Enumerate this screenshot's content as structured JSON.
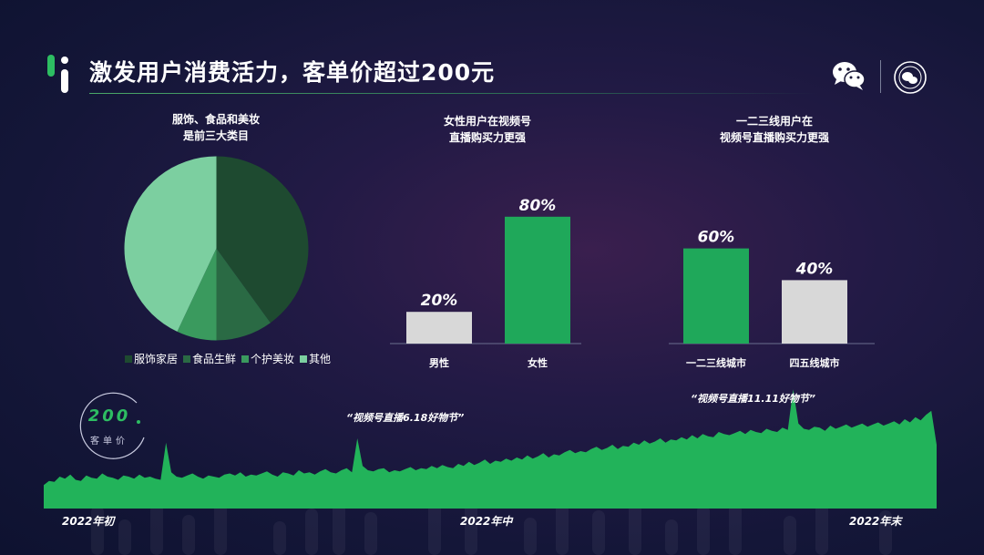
{
  "header": {
    "title": "激发用户消费活力，客单价超过200元"
  },
  "colors": {
    "brand_green": "#2dbd62",
    "bar_green": "#1fa85a",
    "bar_grey": "#d8d8d8",
    "pie_dark": "#1e4a30",
    "pie_mid": "#2a6a44",
    "pie_green": "#3a9a5e",
    "pie_light": "#7ccfa0",
    "area_green": "#22b35a"
  },
  "kpi": {
    "value": "200",
    "label": "客单价"
  },
  "chart_data": [
    {
      "type": "pie",
      "title_line1": "服饰、食品和美妆",
      "title_line2": "是前三大类目",
      "labels": [
        "服饰家居",
        "食品生鲜",
        "个护美妆",
        "其他"
      ],
      "values": [
        40,
        10,
        7,
        43
      ],
      "legend_position": "bottom"
    },
    {
      "type": "bar",
      "title_line1": "女性用户在视频号",
      "title_line2": "直播购买力更强",
      "categories": [
        "男性",
        "女性"
      ],
      "values": [
        20,
        80
      ],
      "value_labels": [
        "20%",
        "80%"
      ],
      "ylim": [
        0,
        100
      ]
    },
    {
      "type": "bar",
      "title_line1": "一二三线用户在",
      "title_line2": "视频号直播购买力更强",
      "categories": [
        "一二三线城市",
        "四五线城市"
      ],
      "values": [
        60,
        40
      ],
      "value_labels": [
        "60%",
        "40%"
      ],
      "ylim": [
        0,
        100
      ]
    },
    {
      "type": "area",
      "x_labels": [
        "2022年初",
        "2022年中",
        "2022年末"
      ],
      "annotations": [
        "“视频号直播6.18好物节”",
        "“视频号直播11.11好物节”"
      ],
      "values": [
        22,
        26,
        25,
        30,
        28,
        32,
        27,
        26,
        31,
        29,
        28,
        33,
        30,
        29,
        27,
        31,
        30,
        28,
        32,
        29,
        30,
        28,
        27,
        62,
        34,
        30,
        29,
        31,
        33,
        30,
        28,
        31,
        30,
        29,
        32,
        33,
        31,
        34,
        30,
        32,
        31,
        33,
        35,
        32,
        30,
        34,
        33,
        31,
        36,
        33,
        34,
        32,
        35,
        37,
        34,
        33,
        36,
        38,
        34,
        66,
        40,
        36,
        35,
        37,
        38,
        34,
        36,
        35,
        37,
        39,
        36,
        38,
        37,
        40,
        38,
        41,
        39,
        38,
        42,
        40,
        44,
        41,
        43,
        46,
        42,
        45,
        44,
        47,
        45,
        48,
        46,
        50,
        47,
        49,
        52,
        48,
        51,
        50,
        53,
        55,
        52,
        54,
        53,
        56,
        58,
        55,
        57,
        60,
        56,
        59,
        58,
        62,
        60,
        64,
        61,
        63,
        66,
        62,
        65,
        64,
        67,
        65,
        69,
        66,
        70,
        68,
        67,
        72,
        70,
        69,
        71,
        73,
        70,
        74,
        72,
        71,
        75,
        73,
        72,
        76,
        74,
        112,
        80,
        75,
        74,
        77,
        76,
        73,
        78,
        75,
        77,
        79,
        76,
        78,
        80,
        77,
        79,
        81,
        78,
        80,
        82,
        79,
        84,
        81,
        86,
        83,
        88,
        92,
        60
      ]
    }
  ]
}
